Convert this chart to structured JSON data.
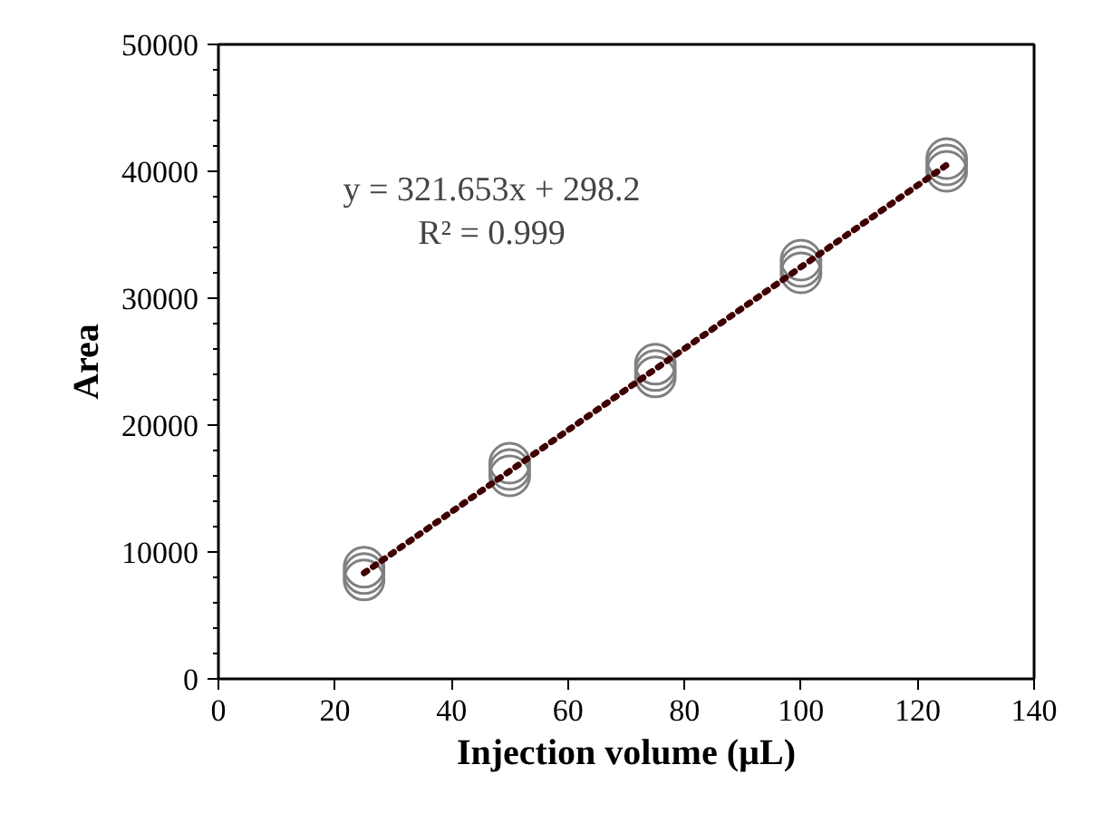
{
  "chart_data": {
    "type": "scatter",
    "xlabel": "Injection volume (µL)",
    "ylabel": "Area",
    "annotations": [
      "y = 321.653x + 298.2",
      "R² = 0.999"
    ],
    "series": [
      {
        "color": "#808080",
        "marker": "circle",
        "x": [
          25,
          25,
          25,
          50,
          50,
          50,
          75,
          75,
          75,
          100,
          100,
          100,
          125,
          125,
          125
        ],
        "values": [
          7800,
          8300,
          8800,
          16000,
          16500,
          17000,
          23800,
          24300,
          24800,
          32000,
          32500,
          33000,
          40000,
          40500,
          41000
        ]
      },
      {
        "type": "line",
        "color": "#400000",
        "line_style": "dotted",
        "x": [
          25,
          125
        ],
        "values": [
          8340,
          40500
        ]
      }
    ],
    "xlim": [
      0,
      140
    ],
    "xticks": [
      0,
      20,
      40,
      60,
      80,
      100,
      120,
      140
    ],
    "ylim": [
      0,
      50000
    ],
    "yticks": [
      0,
      10000,
      20000,
      30000,
      40000,
      50000
    ],
    "grid": false
  }
}
